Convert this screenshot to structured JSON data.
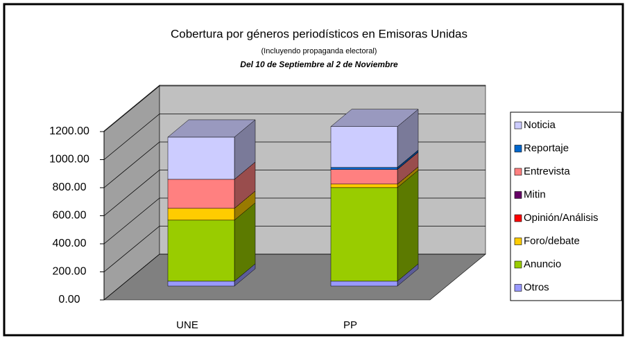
{
  "chart_data": {
    "type": "bar3d_stacked",
    "title": "Cobertura por géneros periodísticos en Emisoras Unidas",
    "subtitle": "(Incluyendo propaganda electoral)",
    "date_range": "Del 10 de Septiembre al 2 de Noviembre",
    "categories": [
      "UNE",
      "PP"
    ],
    "series": [
      {
        "name": "Noticia",
        "color": "#ccccff",
        "values": [
          301,
          291
        ]
      },
      {
        "name": "Reportaje",
        "color": "#0066cc",
        "values": [
          0,
          15
        ]
      },
      {
        "name": "Entrevista",
        "color": "#ff8080",
        "values": [
          207,
          104
        ]
      },
      {
        "name": "Mitin",
        "color": "#660066",
        "values": [
          0,
          0
        ]
      },
      {
        "name": "Opinión/Análisis",
        "color": "#ff0000",
        "values": [
          0,
          0
        ]
      },
      {
        "name": "Foro/debate",
        "color": "#ffcc00",
        "values": [
          84,
          25
        ]
      },
      {
        "name": "Anuncio",
        "color": "#99cc00",
        "values": [
          435,
          667
        ]
      },
      {
        "name": "Otros",
        "color": "#9999ff",
        "values": [
          35,
          35
        ]
      }
    ],
    "ylim": [
      0,
      1200
    ],
    "yticks": [
      {
        "value": 0,
        "label": "0.00"
      },
      {
        "value": 200,
        "label": "200.00"
      },
      {
        "value": 400,
        "label": "400.00"
      },
      {
        "value": 600,
        "label": "600.00"
      },
      {
        "value": 800,
        "label": "800.00"
      },
      {
        "value": 1000,
        "label": "1000.00"
      },
      {
        "value": 1200,
        "label": "1200.00"
      }
    ],
    "stacked": true,
    "grid": true
  }
}
